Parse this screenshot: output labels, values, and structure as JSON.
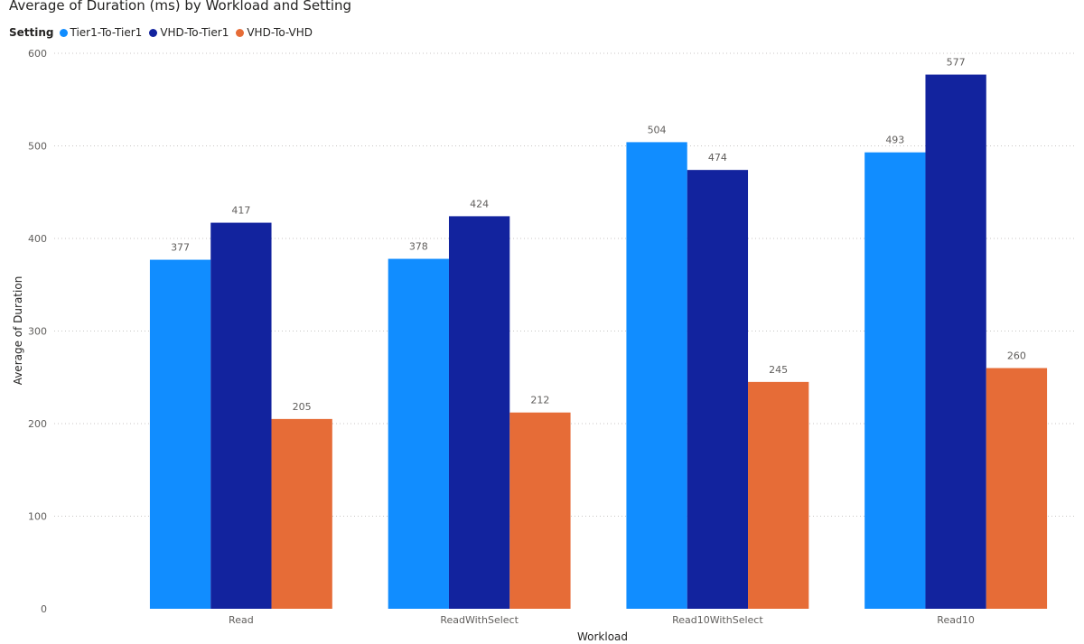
{
  "chart_data": {
    "type": "bar",
    "title": "Average of Duration (ms) by Workload and Setting",
    "legend_title": "Setting",
    "legend_position": "top-left",
    "xlabel": "Workload",
    "ylabel": "Average of Duration",
    "categories": [
      "Read",
      "ReadWithSelect",
      "Read10WithSelect",
      "Read10"
    ],
    "series": [
      {
        "name": "Tier1-To-Tier1",
        "color": "#118DFF",
        "values": [
          377,
          378,
          504,
          493
        ]
      },
      {
        "name": "VHD-To-Tier1",
        "color": "#12239E",
        "values": [
          417,
          424,
          474,
          577
        ]
      },
      {
        "name": "VHD-To-VHD",
        "color": "#E66C37",
        "values": [
          205,
          212,
          245,
          260
        ]
      }
    ],
    "ylim": [
      0,
      600
    ],
    "yticks": [
      "0",
      "100",
      "200",
      "300",
      "400",
      "500",
      "600"
    ],
    "grid": true
  }
}
